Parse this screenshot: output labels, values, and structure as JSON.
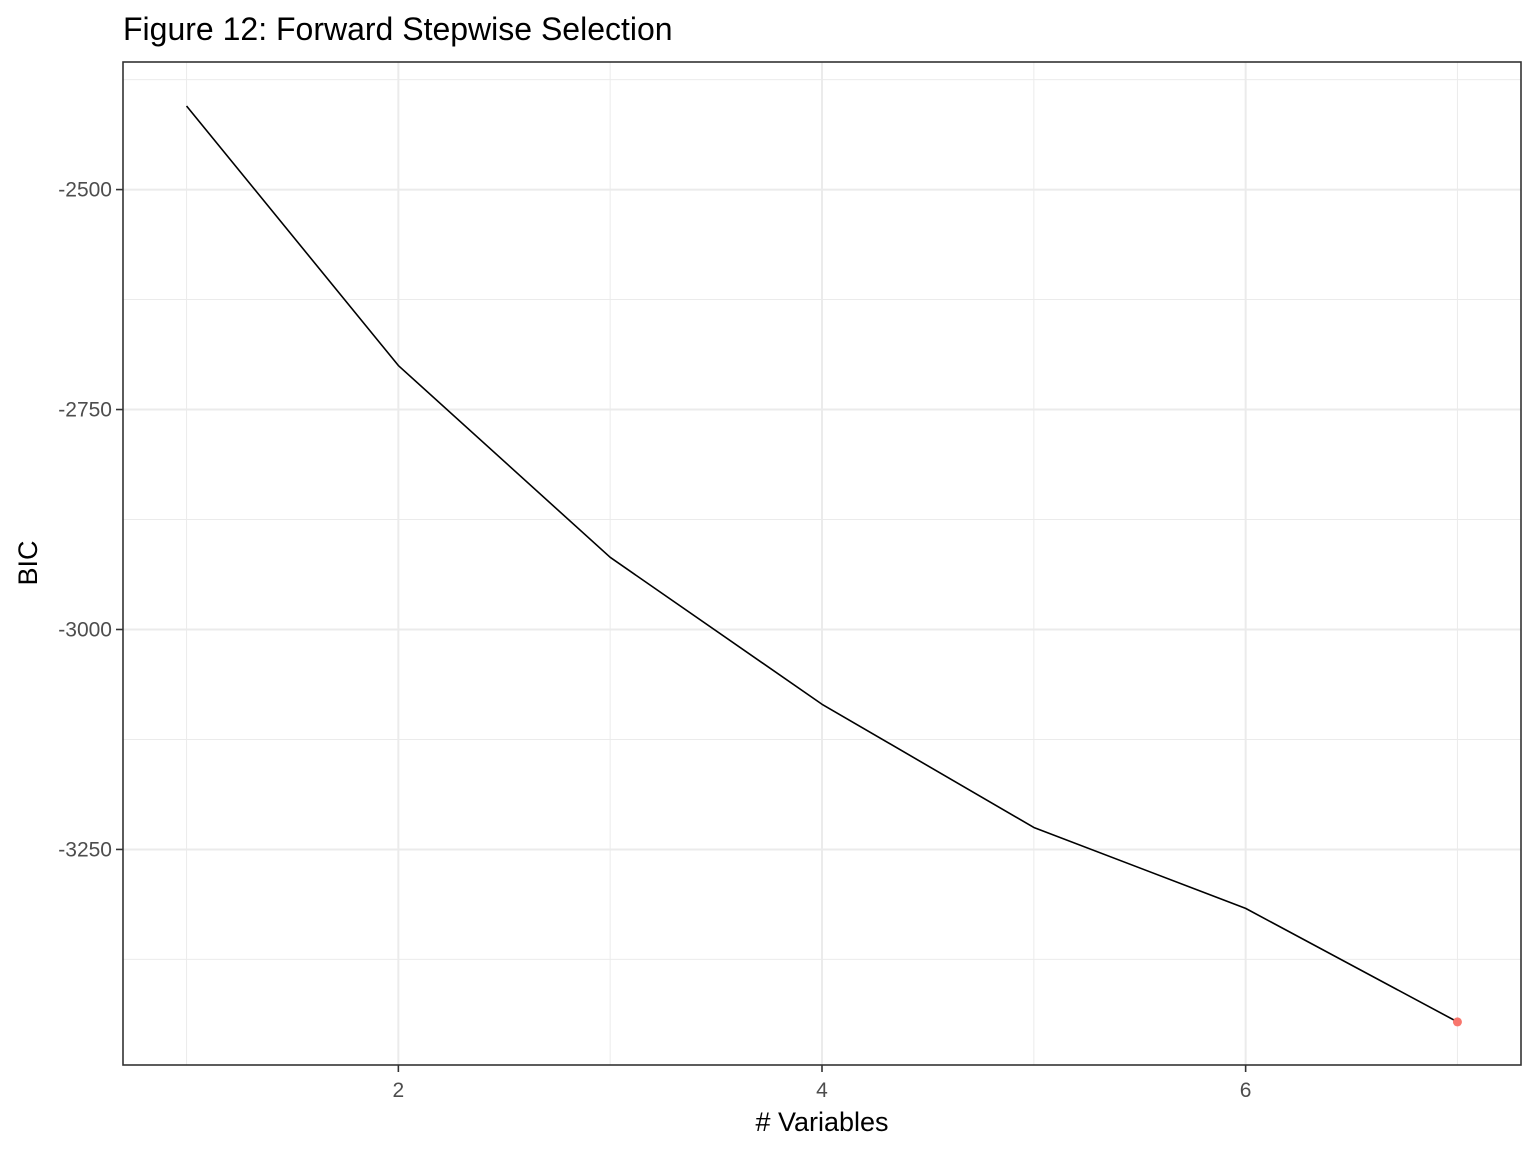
{
  "chart_data": {
    "type": "line",
    "title": "Figure 12: Forward Stepwise Selection",
    "xlabel": "# Variables",
    "ylabel": "BIC",
    "x": [
      1,
      2,
      3,
      4,
      5,
      6,
      7
    ],
    "series": [
      {
        "values": [
          -2405,
          -2700,
          -2918,
          -3085,
          -3225,
          -3317,
          -3446
        ],
        "color": "#000000"
      }
    ],
    "highlight": {
      "x": 7,
      "y": -3446,
      "color": "#F8766D"
    },
    "xlim": [
      0.7,
      7.3
    ],
    "ylim": [
      -3495,
      -2355
    ],
    "x_ticks": [
      2,
      4,
      6
    ],
    "x_tick_labels": [
      "2",
      "4",
      "6"
    ],
    "y_ticks": [
      -2500,
      -2750,
      -3000,
      -3250
    ],
    "y_tick_labels": [
      "-2500",
      "-2750",
      "-3000",
      "-3250"
    ],
    "grid": true,
    "colors": {
      "grid": "#ebebeb",
      "panel_border": "#333333",
      "tick_label": "#4d4d4d",
      "text": "#000000"
    }
  }
}
